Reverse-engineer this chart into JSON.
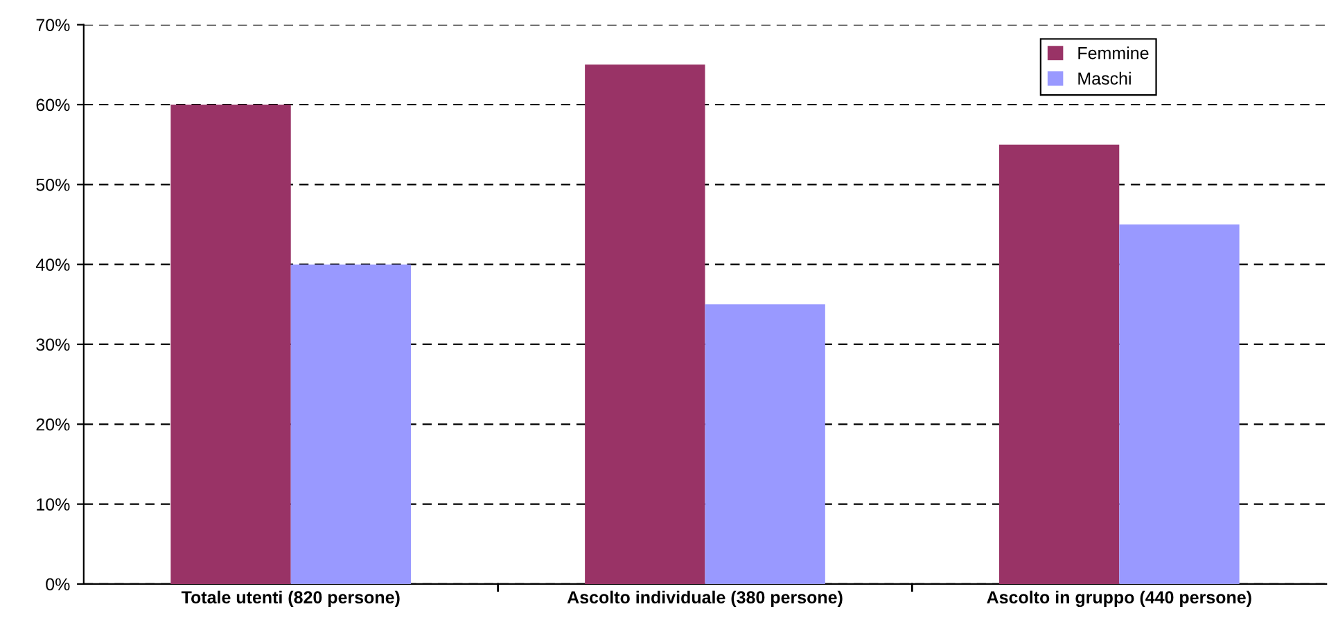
{
  "chart_data": {
    "type": "bar",
    "categories": [
      "Totale utenti (820 persone)",
      "Ascolto individuale (380 persone)",
      "Ascolto in gruppo (440 persone)"
    ],
    "series": [
      {
        "name": "Femmine",
        "color": "#993366",
        "values": [
          60,
          65,
          55
        ]
      },
      {
        "name": "Maschi",
        "color": "#9999ff",
        "values": [
          40,
          35,
          45
        ]
      }
    ],
    "ylim": [
      0,
      70
    ],
    "yticks": [
      {
        "value": 0,
        "label": "0%"
      },
      {
        "value": 10,
        "label": "10%"
      },
      {
        "value": 20,
        "label": "20%"
      },
      {
        "value": 30,
        "label": "30%"
      },
      {
        "value": 40,
        "label": "40%"
      },
      {
        "value": 50,
        "label": "50%"
      },
      {
        "value": 60,
        "label": "60%"
      },
      {
        "value": 70,
        "label": "70%"
      }
    ],
    "grid": "y",
    "legend": "top right"
  }
}
